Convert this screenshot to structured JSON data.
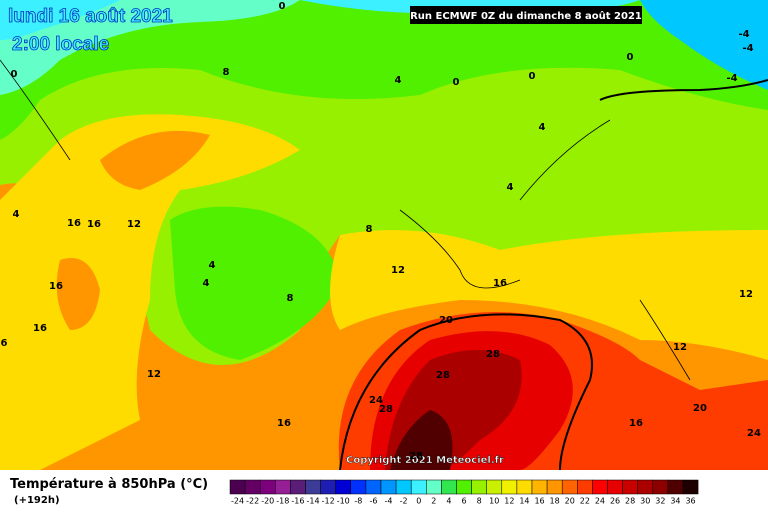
{
  "header": {
    "title": "lundi 16 août 2021",
    "subtitle": "2:00 locale",
    "run": "Run ECMWF 0Z du dimanche 8 août 2021"
  },
  "footer": {
    "title": "Température à 850hPa (°C)",
    "lead": "(+192h)",
    "copyright": "Copyright 2021 Meteociel.fr"
  },
  "legend": {
    "ticks": [
      -24,
      -22,
      -20,
      -18,
      -16,
      -14,
      -12,
      -10,
      -8,
      -6,
      -4,
      -2,
      0,
      2,
      4,
      6,
      8,
      10,
      12,
      14,
      16,
      18,
      20,
      22,
      24,
      26,
      28,
      30,
      32,
      34,
      36
    ],
    "colors": [
      "#4b0050",
      "#640064",
      "#7d007d",
      "#961e96",
      "#5a1e78",
      "#3c3c96",
      "#1e1eb4",
      "#0000d2",
      "#0032ff",
      "#0064ff",
      "#0096ff",
      "#00c8ff",
      "#3cf0ff",
      "#64ffc8",
      "#32e650",
      "#50f000",
      "#96f000",
      "#c8f000",
      "#f0f000",
      "#ffdc00",
      "#ffb400",
      "#ff9600",
      "#ff6400",
      "#ff3c00",
      "#ff0000",
      "#e60000",
      "#c80000",
      "#aa0000",
      "#8c0000",
      "#500000",
      "#1e0000"
    ]
  },
  "contour_labels": [
    0,
    0,
    8,
    4,
    0,
    0,
    0,
    -4,
    -4,
    -4,
    4,
    4,
    4,
    16,
    16,
    12,
    8,
    4,
    4,
    12,
    16,
    8,
    16,
    12,
    16,
    20,
    6,
    28,
    12,
    12,
    28,
    24,
    28,
    20,
    16,
    16,
    24,
    28
  ]
}
